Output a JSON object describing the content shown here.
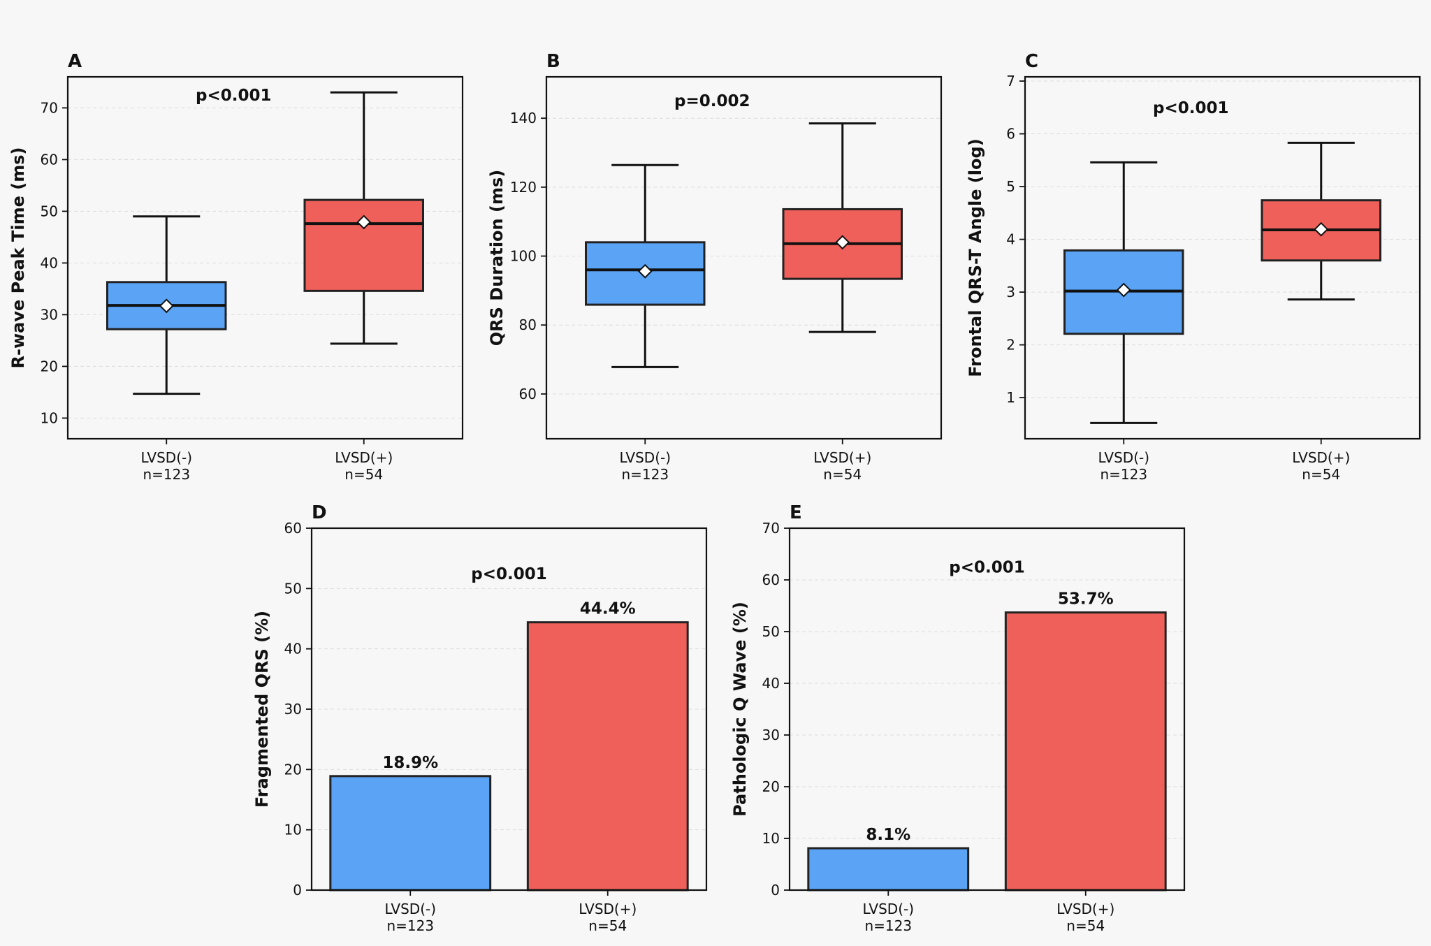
{
  "colors": {
    "negative": "#5aa3f5",
    "positive": "#f0605a",
    "edge": "#222222",
    "background": "#f7f7f7"
  },
  "chart_data": [
    {
      "panel": "A",
      "type": "box",
      "ylabel": "R-wave Peak Time (ms)",
      "ylim": [
        6,
        76
      ],
      "yticks": [
        10,
        20,
        30,
        40,
        50,
        60,
        70
      ],
      "pvalue": "p<0.001",
      "groups": [
        {
          "label": "LVSD(-)",
          "n": "n=123",
          "whisker_low": 14.7,
          "q1": 27.2,
          "median": 31.8,
          "q3": 36.3,
          "whisker_high": 49.0,
          "mean": 31.7
        },
        {
          "label": "LVSD(+)",
          "n": "n=54",
          "whisker_low": 24.4,
          "q1": 34.6,
          "median": 47.6,
          "q3": 52.2,
          "whisker_high": 73.0,
          "mean": 47.9
        }
      ]
    },
    {
      "panel": "B",
      "type": "box",
      "ylabel": "QRS Duration (ms)",
      "ylim": [
        47,
        152
      ],
      "yticks": [
        60,
        80,
        100,
        120,
        140
      ],
      "pvalue": "p=0.002",
      "groups": [
        {
          "label": "LVSD(-)",
          "n": "n=123",
          "whisker_low": 67.8,
          "q1": 85.9,
          "median": 96.0,
          "q3": 104.0,
          "whisker_high": 126.4,
          "mean": 95.6
        },
        {
          "label": "LVSD(+)",
          "n": "n=54",
          "whisker_low": 78.0,
          "q1": 93.4,
          "median": 103.6,
          "q3": 113.6,
          "whisker_high": 138.5,
          "mean": 104.0
        }
      ]
    },
    {
      "panel": "C",
      "type": "box",
      "ylabel": "Frontal QRS-T Angle (log)",
      "ylim": [
        0.22,
        7.08
      ],
      "yticks": [
        1,
        2,
        3,
        4,
        5,
        6,
        7
      ],
      "pvalue": "p<0.001",
      "groups": [
        {
          "label": "LVSD(-)",
          "n": "n=123",
          "whisker_low": 0.52,
          "q1": 2.21,
          "median": 3.02,
          "q3": 3.79,
          "whisker_high": 5.46,
          "mean": 3.04
        },
        {
          "label": "LVSD(+)",
          "n": "n=54",
          "whisker_low": 2.86,
          "q1": 3.6,
          "median": 4.18,
          "q3": 4.74,
          "whisker_high": 5.83,
          "mean": 4.19
        }
      ]
    },
    {
      "panel": "D",
      "type": "bar",
      "ylabel": "Fragmented QRS (%)",
      "ylim": [
        0,
        60
      ],
      "yticks": [
        0,
        10,
        20,
        30,
        40,
        50,
        60
      ],
      "pvalue": "p<0.001",
      "pvalue_y": 52.5,
      "categories": [
        "LVSD(-)",
        "LVSD(+)"
      ],
      "n": [
        "n=123",
        "n=54"
      ],
      "values": [
        18.9,
        44.4
      ],
      "value_labels": [
        "18.9%",
        "44.4%"
      ]
    },
    {
      "panel": "E",
      "type": "bar",
      "ylabel": "Pathologic Q Wave (%)",
      "ylim": [
        0,
        70
      ],
      "yticks": [
        0,
        10,
        20,
        30,
        40,
        50,
        60,
        70
      ],
      "pvalue": "p<0.001",
      "pvalue_y": 62.5,
      "categories": [
        "LVSD(-)",
        "LVSD(+)"
      ],
      "n": [
        "n=123",
        "n=54"
      ],
      "values": [
        8.1,
        53.7
      ],
      "value_labels": [
        "8.1%",
        "53.7%"
      ]
    }
  ]
}
